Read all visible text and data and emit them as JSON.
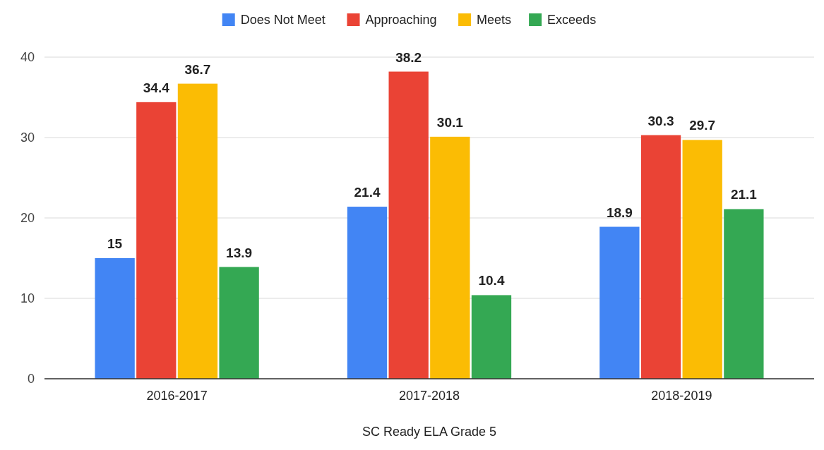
{
  "chart_data": {
    "type": "bar",
    "xlabel": "SC Ready ELA Grade 5",
    "categories": [
      "2016-2017",
      "2017-2018",
      "2018-2019"
    ],
    "series": [
      {
        "name": "Does Not Meet",
        "color": "#4285f4",
        "values": [
          15,
          21.4,
          18.9
        ]
      },
      {
        "name": "Approaching",
        "color": "#ea4335",
        "values": [
          34.4,
          38.2,
          30.3
        ]
      },
      {
        "name": "Meets",
        "color": "#fbbc04",
        "values": [
          36.7,
          30.1,
          29.7
        ]
      },
      {
        "name": "Exceeds",
        "color": "#34a853",
        "values": [
          13.9,
          10.4,
          21.1
        ]
      }
    ],
    "ylim": [
      0,
      40
    ],
    "yticks": [
      0,
      10,
      20,
      30,
      40
    ],
    "grid": "y",
    "legend": "top",
    "data_labels": true
  }
}
